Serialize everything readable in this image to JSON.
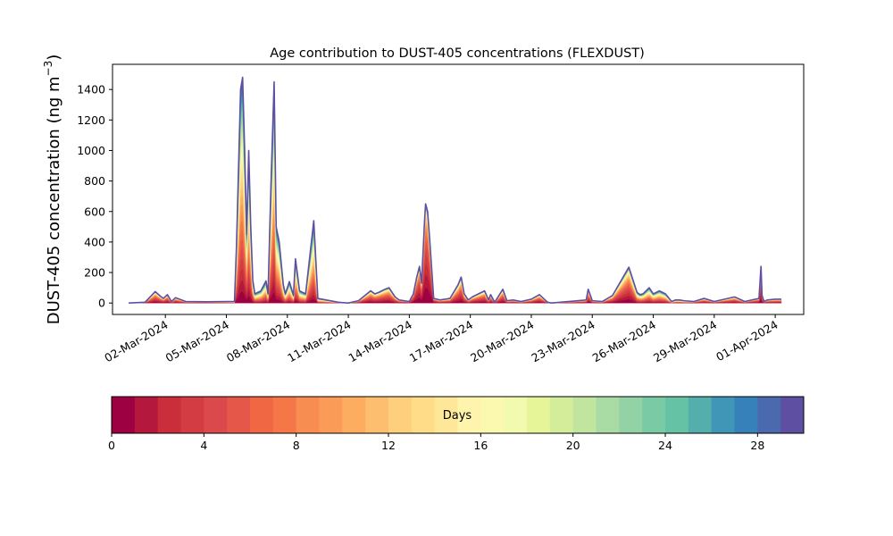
{
  "chart_data": {
    "type": "area",
    "title": "Age contribution to DUST-405 concentrations (FLEXDUST)",
    "ylabel": "DUST-405 concentration (ng m",
    "ylabel_sup": "−3",
    "ylabel_close": ")",
    "ylim": [
      -75,
      1565
    ],
    "yticks": [
      0,
      200,
      400,
      600,
      800,
      1000,
      1200,
      1400
    ],
    "xlim_days": [
      -1.6,
      32.4
    ],
    "xticks": [
      {
        "day": 1,
        "label": "02-Mar-2024"
      },
      {
        "day": 4,
        "label": "05-Mar-2024"
      },
      {
        "day": 7,
        "label": "08-Mar-2024"
      },
      {
        "day": 10,
        "label": "11-Mar-2024"
      },
      {
        "day": 13,
        "label": "14-Mar-2024"
      },
      {
        "day": 16,
        "label": "17-Mar-2024"
      },
      {
        "day": 19,
        "label": "20-Mar-2024"
      },
      {
        "day": 22,
        "label": "23-Mar-2024"
      },
      {
        "day": 25,
        "label": "26-Mar-2024"
      },
      {
        "day": 28,
        "label": "29-Mar-2024"
      },
      {
        "day": 31,
        "label": "01-Apr-2024"
      }
    ],
    "total_series": {
      "name": "Total",
      "day": [
        -0.8,
        0,
        0.5,
        0.75,
        0.9,
        1.1,
        1.3,
        1.5,
        2,
        3,
        4.4,
        4.5,
        4.7,
        4.8,
        4.9,
        5.0,
        5.1,
        5.2,
        5.3,
        5.4,
        5.7,
        5.95,
        6.05,
        6.2,
        6.35,
        6.45,
        6.6,
        6.8,
        6.9,
        7.1,
        7.3,
        7.4,
        7.6,
        7.9,
        8.1,
        8.3,
        8.5,
        9.5,
        10,
        10.5,
        11.1,
        11.3,
        11.5,
        11.8,
        12,
        12.3,
        12.5,
        13,
        13.2,
        13.35,
        13.5,
        13.6,
        13.7,
        13.75,
        13.8,
        13.9,
        14,
        14.2,
        14.5,
        15,
        15.4,
        15.55,
        15.7,
        15.9,
        16.1,
        16.7,
        16.9,
        17.0,
        17.2,
        17.6,
        17.8,
        18.1,
        18.5,
        19,
        19.4,
        19.8,
        20,
        21.7,
        21.8,
        22,
        22.5,
        23,
        23.8,
        24.2,
        24.35,
        24.5,
        24.8,
        25,
        25.3,
        25.6,
        25.9,
        26.1,
        26.3,
        26.5,
        27,
        27.5,
        28,
        29,
        29.5,
        30.2,
        30.3,
        30.35,
        30.45,
        30.6,
        31,
        31.3
      ],
      "value": [
        0,
        5,
        75,
        45,
        30,
        55,
        10,
        35,
        10,
        8,
        10,
        380,
        1400,
        1480,
        1000,
        450,
        1000,
        500,
        150,
        60,
        80,
        145,
        60,
        800,
        1450,
        500,
        400,
        120,
        60,
        140,
        50,
        290,
        80,
        60,
        300,
        540,
        30,
        5,
        0,
        15,
        80,
        60,
        70,
        90,
        100,
        40,
        20,
        10,
        60,
        160,
        240,
        130,
        400,
        540,
        650,
        600,
        420,
        30,
        20,
        30,
        120,
        170,
        60,
        20,
        40,
        80,
        20,
        55,
        5,
        90,
        15,
        20,
        10,
        25,
        55,
        5,
        0,
        20,
        90,
        15,
        10,
        50,
        235,
        70,
        55,
        60,
        100,
        60,
        80,
        60,
        10,
        20,
        20,
        15,
        10,
        30,
        10,
        40,
        10,
        30,
        240,
        50,
        10,
        20,
        25,
        25
      ],
      "color": "#5e4fa2"
    },
    "age_contributions_by_day": "stacked age classes 0–30 days, youngest (0 days) at bottom",
    "colorbar": {
      "label": "Days",
      "ticks": [
        0,
        4,
        8,
        12,
        16,
        20,
        24,
        28
      ],
      "range": [
        0,
        30
      ],
      "bins": 30,
      "colors": [
        "#9e0142",
        "#b4183d",
        "#c92e3a",
        "#d33c42",
        "#dc494c",
        "#e55749",
        "#f06744",
        "#f57748",
        "#f88d52",
        "#fa9b58",
        "#fdad60",
        "#fdbf6f",
        "#fed07e",
        "#fedc88",
        "#fee798",
        "#fff4ae",
        "#fbf8b0",
        "#f2fab0",
        "#e6f598",
        "#d4ed9b",
        "#c1e49f",
        "#a9dca4",
        "#92d2a4",
        "#7acba5",
        "#66c2a5",
        "#54aeac",
        "#3f96b7",
        "#3681ba",
        "#4a69ae",
        "#5e4fa2"
      ]
    }
  }
}
